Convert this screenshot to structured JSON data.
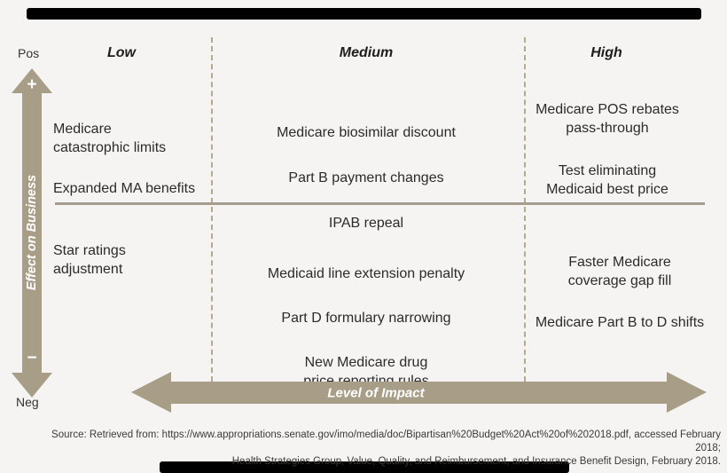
{
  "colors": {
    "background": "#f5f4f2",
    "accent_tan": "#a89e87",
    "dashed_divider": "#b3aa92",
    "solid_divider": "#a49d90",
    "text": "#2b2b2b",
    "transparency_bar": "#000000"
  },
  "axes": {
    "y": {
      "name": "Effect on Business",
      "top_cap": "Pos",
      "bottom_cap": "Neg",
      "plus": "+",
      "minus": "−"
    },
    "x": {
      "name": "Level of Impact"
    }
  },
  "columns": [
    {
      "label": "Low"
    },
    {
      "label": "Medium"
    },
    {
      "label": "High"
    }
  ],
  "cells": {
    "low_pos": [
      "Medicare\ncatastrophic limits",
      "Expanded MA benefits"
    ],
    "medium_pos": [
      "Medicare biosimilar discount",
      "Part B payment changes",
      "IPAB repeal"
    ],
    "high_pos": [
      "Medicare POS rebates\npass-through",
      "Test eliminating\nMedicaid best price"
    ],
    "low_neg": [
      "Star ratings\nadjustment"
    ],
    "medium_neg": [
      "Medicaid line extension penalty",
      "Part D formulary narrowing",
      "New Medicare drug\nprice reporting rules"
    ],
    "high_neg": [
      "Faster Medicare\ncoverage gap fill",
      "Medicare Part B to D shifts"
    ]
  },
  "source": {
    "line1": "Source: Retrieved from: https://www.appropriations.senate.gov/imo/media/doc/Bipartisan%20Budget%20Act%20of%202018.pdf, accessed February 2018;",
    "line2": "Health Strategies Group, Value, Quality, and Reimbursement, and Insurance Benefit Design, February 2018."
  }
}
